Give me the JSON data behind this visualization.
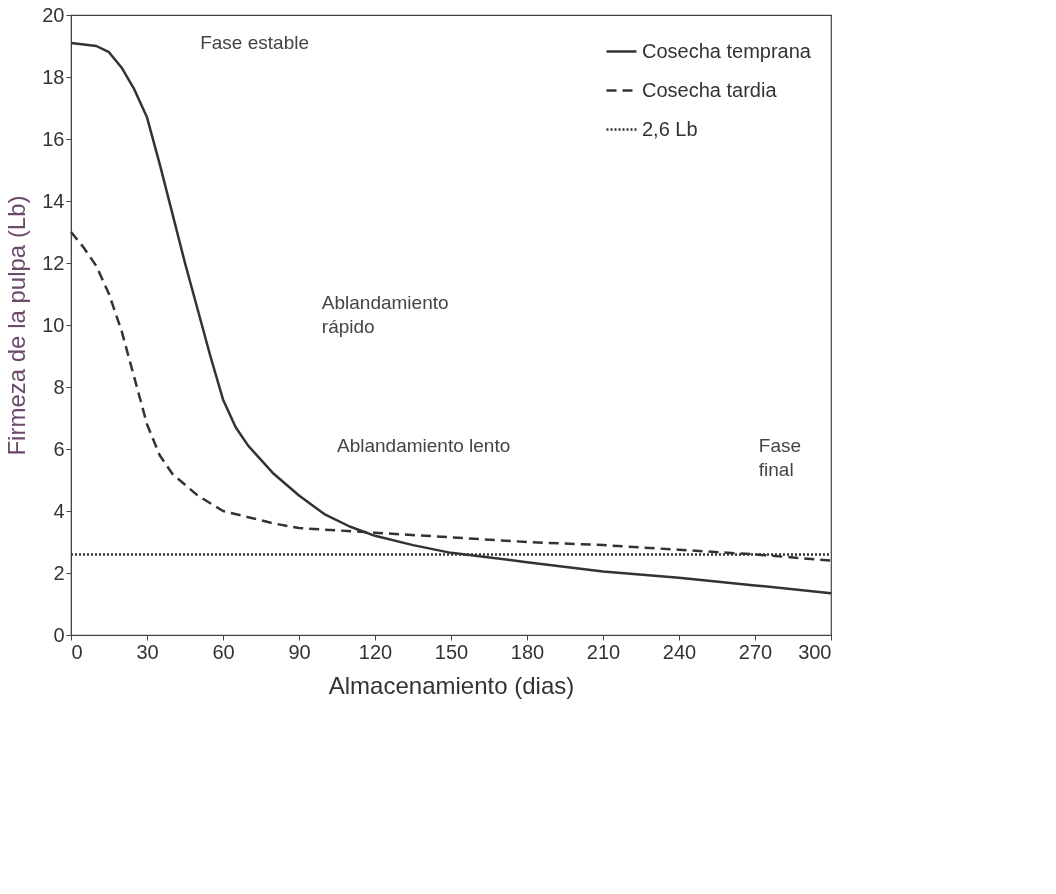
{
  "chart_data": {
    "type": "line",
    "xlabel": "Almacenamiento (dias)",
    "ylabel": "Firmeza de la pulpa (Lb)",
    "xlim": [
      0,
      300
    ],
    "xticks": [
      0,
      30,
      60,
      90,
      120,
      150,
      180,
      210,
      240,
      270,
      300
    ],
    "ylim": [
      0,
      20
    ],
    "yticks": [
      0,
      2,
      4,
      6,
      8,
      10,
      12,
      14,
      16,
      18,
      20
    ],
    "grid": false,
    "legend": "top right",
    "marker": "none",
    "series": [
      {
        "name": "Cosecha temprana",
        "color": "#333333",
        "line_style": "solid",
        "x": [
          0,
          10,
          15,
          20,
          25,
          30,
          35,
          40,
          45,
          50,
          55,
          60,
          65,
          70,
          80,
          90,
          100,
          110,
          120,
          135,
          150,
          180,
          210,
          240,
          270,
          300
        ],
        "values": [
          19.1,
          19.0,
          18.8,
          18.3,
          17.6,
          16.7,
          15.2,
          13.6,
          12.0,
          10.5,
          9.0,
          7.6,
          6.7,
          6.1,
          5.2,
          4.5,
          3.9,
          3.5,
          3.2,
          2.9,
          2.65,
          2.35,
          2.05,
          1.85,
          1.6,
          1.35
        ]
      },
      {
        "name": "Cosecha tardia",
        "color": "#333333",
        "line_style": "dashed",
        "x": [
          0,
          5,
          10,
          15,
          20,
          25,
          30,
          35,
          40,
          50,
          60,
          70,
          80,
          90,
          100,
          120,
          150,
          180,
          210,
          240,
          270,
          300
        ],
        "values": [
          13.0,
          12.5,
          11.9,
          11.0,
          9.8,
          8.3,
          6.8,
          5.8,
          5.2,
          4.5,
          4.0,
          3.8,
          3.6,
          3.45,
          3.4,
          3.3,
          3.15,
          3.0,
          2.9,
          2.75,
          2.6,
          2.4
        ]
      },
      {
        "name": "2,6 Lb",
        "color": "#333333",
        "line_style": "dotted",
        "x": [
          0,
          300
        ],
        "values": [
          2.6,
          2.6
        ]
      }
    ],
    "annotations": [
      "Fase estable",
      "Ablandamiento rápido",
      "Ablandamiento lento",
      "Fase final"
    ]
  }
}
